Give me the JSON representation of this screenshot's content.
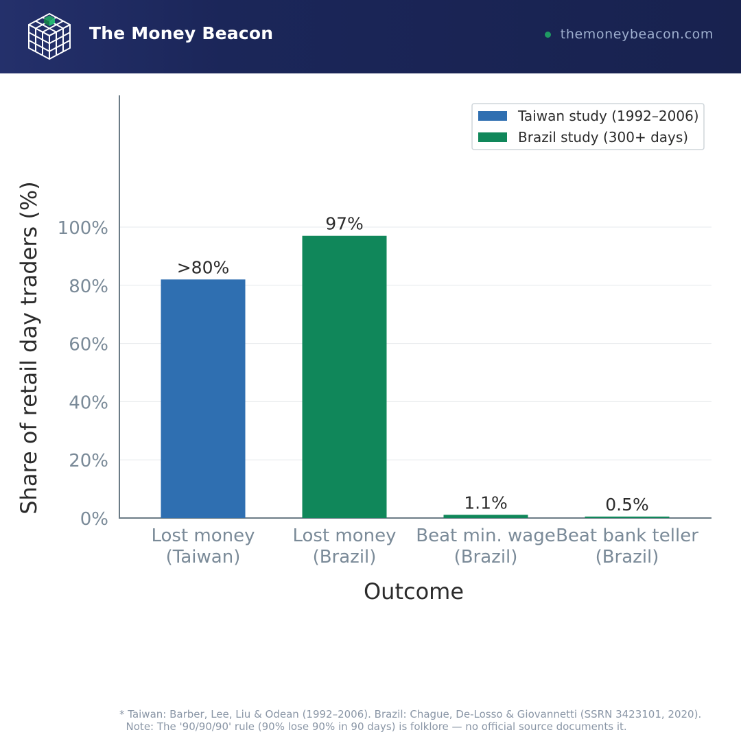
{
  "header": {
    "brand": "The Money Beacon",
    "site": "themoneybeacon.com",
    "logo_icon": "cube-grid-icon"
  },
  "colors": {
    "header_bg": "#1b2659",
    "taiwan": "#2f6fb1",
    "brazil": "#10875a",
    "axis_text": "#7a8a98",
    "dark_text": "#2b2b2b",
    "site_dot": "#1f9a63"
  },
  "chart_data": {
    "type": "bar",
    "categories": [
      [
        "Lost money",
        "(Taiwan)"
      ],
      [
        "Lost money",
        "(Brazil)"
      ],
      [
        "Beat min. wage",
        "(Brazil)"
      ],
      [
        "Beat bank teller",
        "(Brazil)"
      ]
    ],
    "values": [
      82,
      97,
      1.1,
      0.5
    ],
    "bar_series": [
      "Taiwan study (1992–2006)",
      "Brazil study (300+ days)",
      "Brazil study (300+ days)",
      "Brazil study (300+ days)"
    ],
    "data_labels": [
      ">80%",
      "97%",
      "1.1%",
      "0.5%"
    ],
    "series": [
      {
        "name": "Taiwan study (1992–2006)",
        "color": "#2f6fb1"
      },
      {
        "name": "Brazil study (300+ days)",
        "color": "#10875a"
      }
    ],
    "xlabel": "Outcome",
    "ylabel": "Share of retail day traders (%)",
    "ylim": [
      0,
      145
    ],
    "yticks": [
      0,
      20,
      40,
      60,
      80,
      100
    ],
    "ytick_labels": [
      "0%",
      "20%",
      "40%",
      "60%",
      "80%",
      "100%"
    ],
    "grid": true,
    "legend_position": "top-right"
  },
  "footnote": {
    "line1": "* Taiwan: Barber, Lee, Liu & Odean (1992–2006). Brazil: Chague, De-Losso & Giovannetti (SSRN 3423101, 2020).",
    "line2": "  Note: The '90/90/90' rule (90% lose 90% in 90 days) is folklore — no official source documents it."
  }
}
